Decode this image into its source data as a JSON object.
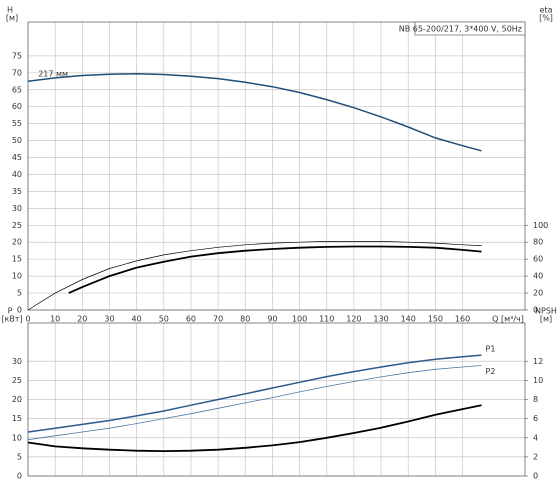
{
  "chart_data": [
    {
      "type": "line",
      "title": "NB 65-200/217, 3*400 V, 50Hz",
      "ylabel": "H",
      "yunit": "[м]",
      "y2label": "eta",
      "y2unit": "[%]",
      "xlabel": "Q [м³/ч]",
      "xlim": [
        0,
        183
      ],
      "xticks": [
        0,
        10,
        20,
        30,
        40,
        50,
        60,
        70,
        80,
        90,
        100,
        110,
        120,
        130,
        140,
        150,
        160
      ],
      "ylim": [
        0,
        85
      ],
      "yticks": [
        0,
        5,
        10,
        15,
        20,
        25,
        30,
        35,
        40,
        45,
        50,
        55,
        60,
        65,
        70,
        75
      ],
      "y2lim": [
        0,
        340
      ],
      "y2ticks": [
        0,
        20,
        40,
        60,
        80,
        100
      ],
      "grid": true,
      "xtick_labels": true,
      "series": [
        {
          "name": "217 мм",
          "color": "#1f4e79",
          "x": [
            0,
            10,
            20,
            30,
            40,
            50,
            60,
            70,
            80,
            90,
            100,
            110,
            120,
            130,
            140,
            150,
            160,
            167
          ],
          "values": [
            67.5,
            68.5,
            69.2,
            69.6,
            69.7,
            69.5,
            69,
            68.3,
            67.2,
            65.9,
            64.2,
            62.1,
            59.7,
            57,
            54,
            50.8,
            48.5,
            47
          ]
        },
        {
          "color": "#000000",
          "axis": "y2",
          "width": 0.7,
          "x": [
            0,
            10,
            20,
            30,
            40,
            50,
            60,
            70,
            80,
            90,
            100,
            110,
            120,
            130,
            140,
            150,
            160,
            167
          ],
          "values": [
            0,
            20,
            36,
            49,
            58,
            65,
            70,
            74,
            77,
            79,
            80,
            81,
            81,
            81,
            80,
            79,
            77,
            76
          ]
        },
        {
          "color": "#000000",
          "axis": "y2",
          "width": 1.8,
          "x": [
            15,
            20,
            30,
            40,
            50,
            60,
            70,
            80,
            90,
            100,
            110,
            120,
            130,
            140,
            150,
            160,
            167
          ],
          "values": [
            20,
            27,
            40,
            50,
            57,
            63,
            67,
            70,
            72,
            73.5,
            74.5,
            75,
            75,
            74.5,
            73.5,
            71,
            69
          ]
        }
      ]
    },
    {
      "type": "line",
      "ylabel": "P",
      "yunit": "[кВт]",
      "y2label": "NPSH",
      "y2unit": "[м]",
      "xlim": [
        0,
        183
      ],
      "xticks": [
        0,
        10,
        20,
        30,
        40,
        50,
        60,
        70,
        80,
        90,
        100,
        110,
        120,
        130,
        140,
        150,
        160
      ],
      "ylim": [
        0,
        40
      ],
      "yticks": [
        0,
        5,
        10,
        15,
        20,
        25,
        30
      ],
      "y2lim": [
        0,
        16
      ],
      "y2ticks": [
        0,
        2,
        4,
        6,
        8,
        10,
        12
      ],
      "grid": true,
      "xtick_labels": false,
      "series": [
        {
          "name": "P1",
          "color": "#2b5a8a",
          "width": 1.5,
          "x": [
            0,
            10,
            20,
            30,
            40,
            50,
            60,
            70,
            80,
            90,
            100,
            110,
            120,
            130,
            140,
            150,
            160,
            167
          ],
          "values": [
            11.5,
            12.5,
            13.5,
            14.5,
            15.7,
            17,
            18.5,
            20,
            21.5,
            23,
            24.5,
            26,
            27.3,
            28.5,
            29.6,
            30.5,
            31.2,
            31.6
          ]
        },
        {
          "name": "P2",
          "color": "#4a7aa8",
          "width": 0.8,
          "x": [
            0,
            10,
            20,
            30,
            40,
            50,
            60,
            70,
            80,
            90,
            100,
            110,
            120,
            130,
            140,
            150,
            160,
            167
          ],
          "values": [
            9.5,
            10.5,
            11.5,
            12.5,
            13.7,
            15,
            16.3,
            17.7,
            19.1,
            20.5,
            22,
            23.4,
            24.7,
            25.9,
            27,
            27.9,
            28.5,
            28.9
          ]
        },
        {
          "color": "#000000",
          "axis": "y2",
          "width": 1.8,
          "x": [
            0,
            10,
            20,
            30,
            40,
            50,
            60,
            70,
            80,
            90,
            100,
            110,
            120,
            130,
            140,
            150,
            160,
            167
          ],
          "values": [
            3.5,
            3.1,
            2.9,
            2.75,
            2.65,
            2.6,
            2.65,
            2.75,
            2.95,
            3.2,
            3.55,
            4,
            4.5,
            5.05,
            5.7,
            6.4,
            7,
            7.4
          ]
        }
      ]
    }
  ]
}
